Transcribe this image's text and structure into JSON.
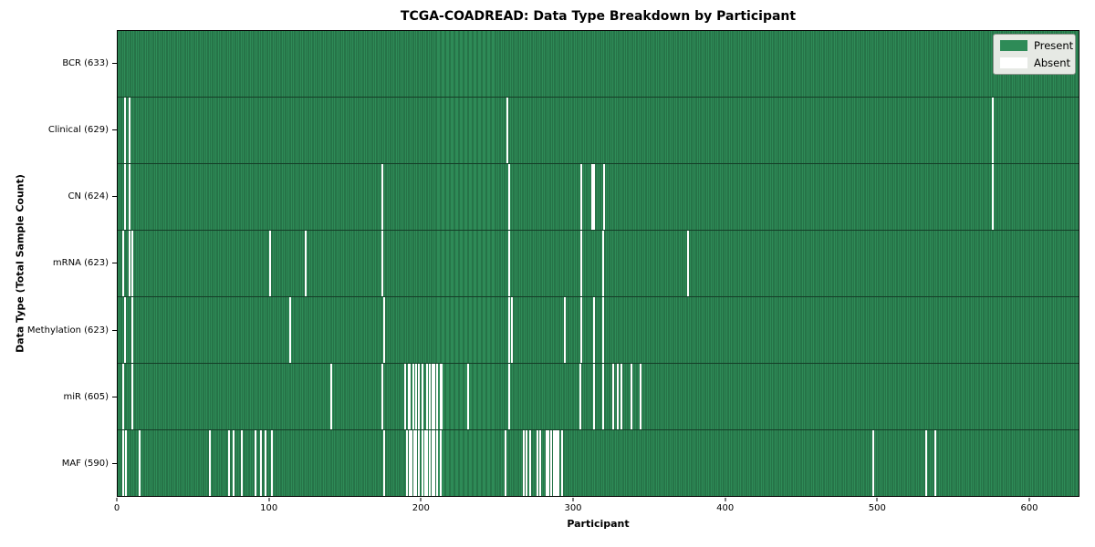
{
  "chart_data": {
    "type": "heatmap",
    "title": "TCGA-COADREAD: Data Type Breakdown by Participant",
    "xlabel": "Participant",
    "ylabel": "Data Type (Total Sample Count)",
    "xlim": [
      0,
      633
    ],
    "x_ticks": [
      0,
      100,
      200,
      300,
      400,
      500,
      600
    ],
    "grid": false,
    "legend_position": "upper-right",
    "colors": {
      "present_fill": "#2e8b57",
      "present_edge": "#1d5c39",
      "absent_fill": "#ffffff"
    },
    "legend": [
      {
        "label": "Present",
        "color": "#2e8b57"
      },
      {
        "label": "Absent",
        "color": "#ffffff"
      }
    ],
    "categories": [
      "BCR",
      "Clinical",
      "CN",
      "mRNA",
      "Methylation",
      "miR",
      "MAF"
    ],
    "rows": [
      {
        "name": "BCR",
        "label": "BCR (633)",
        "total": 633,
        "absent": []
      },
      {
        "name": "Clinical",
        "label": "Clinical (629)",
        "total": 629,
        "absent": [
          4,
          7,
          256,
          576
        ]
      },
      {
        "name": "CN",
        "label": "CN (624)",
        "total": 624,
        "absent": [
          4,
          7,
          174,
          257,
          305,
          312,
          313,
          320,
          576
        ]
      },
      {
        "name": "mRNA",
        "label": "mRNA (623)",
        "total": 623,
        "absent": [
          3,
          7,
          9,
          100,
          123,
          174,
          257,
          305,
          319,
          375
        ]
      },
      {
        "name": "Methylation",
        "label": "Methylation (623)",
        "total": 623,
        "absent": [
          4,
          9,
          113,
          175,
          257,
          259,
          294,
          305,
          313,
          319
        ]
      },
      {
        "name": "miR",
        "label": "miR (605)",
        "total": 605,
        "absent": [
          3,
          9,
          140,
          174,
          189,
          191,
          192,
          194,
          196,
          198,
          200,
          203,
          205,
          207,
          208,
          210,
          212,
          213,
          230,
          257,
          304,
          313,
          319,
          326,
          329,
          331,
          338,
          344
        ]
      },
      {
        "name": "MAF",
        "label": "MAF (590)",
        "total": 590,
        "absent": [
          3,
          5,
          14,
          60,
          73,
          76,
          81,
          90,
          94,
          97,
          101,
          175,
          190,
          192,
          193,
          195,
          196,
          198,
          200,
          202,
          203,
          205,
          207,
          208,
          210,
          212,
          255,
          267,
          269,
          271,
          276,
          278,
          282,
          283,
          285,
          287,
          288,
          289,
          290,
          292,
          497,
          532,
          538
        ]
      }
    ]
  }
}
